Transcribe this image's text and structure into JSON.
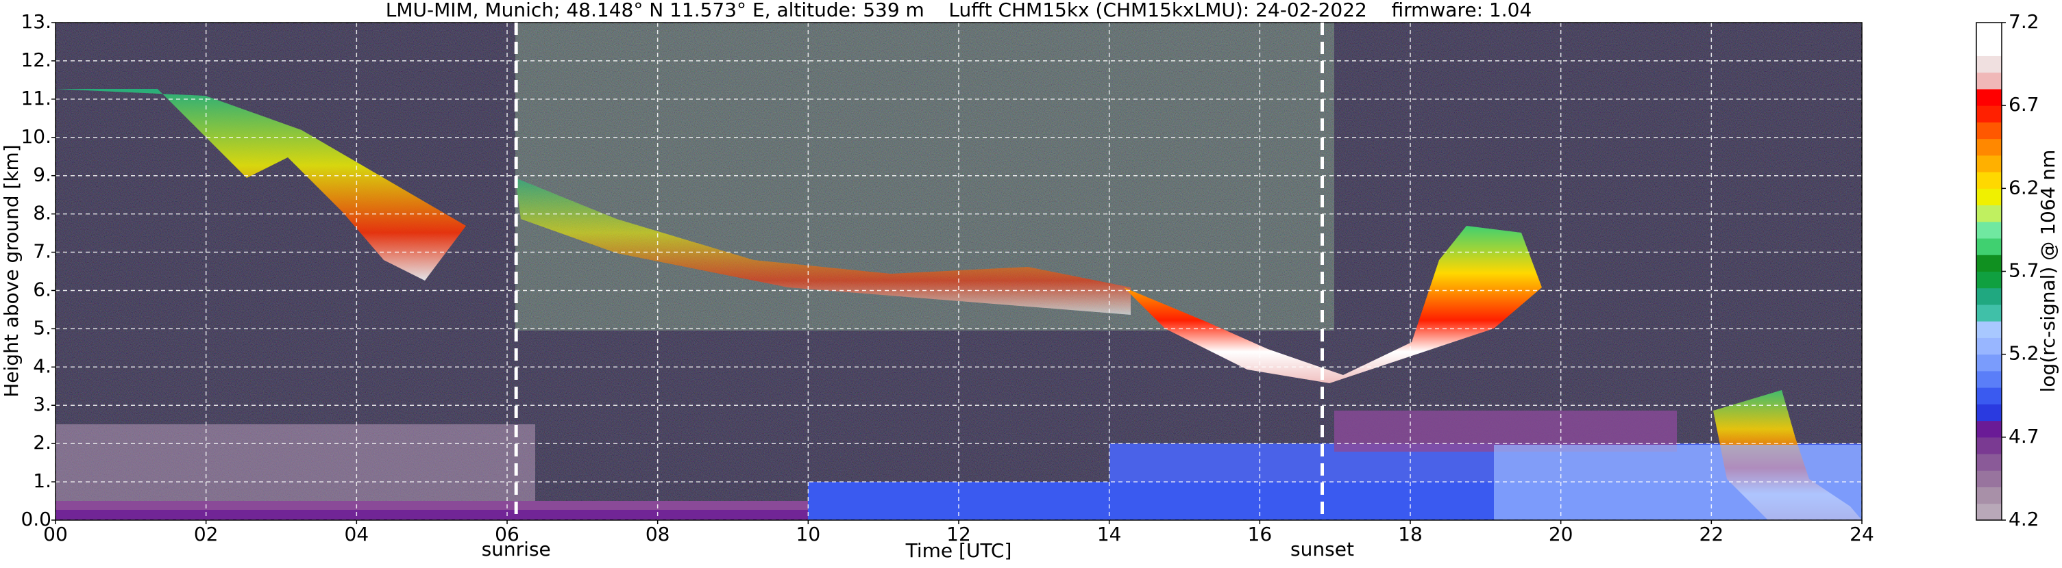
{
  "chart_data": {
    "type": "heatmap",
    "title": "LMU-MIM, Munich; 48.148° N 11.573° E, altitude: 539 m    Lufft CHM15kx (CHM15kxLMU): 24-02-2022    firmware: 1.04",
    "x_label": "Time [UTC]",
    "y_label": "Height above ground [km]",
    "xlim": [
      0,
      24
    ],
    "xticks": [
      {
        "value": 0,
        "label": "00"
      },
      {
        "value": 2,
        "label": "02"
      },
      {
        "value": 4,
        "label": "04"
      },
      {
        "value": 6,
        "label": "06"
      },
      {
        "value": 8,
        "label": "08"
      },
      10,
      12,
      14,
      16,
      18,
      20,
      22,
      24
    ],
    "ylim": [
      0,
      13
    ],
    "yticks": [
      {
        "value": 0,
        "label": "0.0"
      },
      {
        "value": 1,
        "label": "1."
      },
      {
        "value": 2,
        "label": "2."
      },
      {
        "value": 3,
        "label": "3."
      },
      {
        "value": 4,
        "label": "4."
      },
      {
        "value": 5,
        "label": "5."
      },
      {
        "value": 6,
        "label": "6."
      },
      {
        "value": 7,
        "label": "7."
      },
      {
        "value": 8,
        "label": "8."
      },
      {
        "value": 9,
        "label": "9."
      },
      {
        "value": 10,
        "label": "10."
      },
      {
        "value": 11,
        "label": "11."
      },
      {
        "value": 12,
        "label": "12."
      },
      {
        "value": 13,
        "label": "13."
      }
    ],
    "grid": true,
    "annotations": [
      {
        "x": 6.12,
        "label": "sunrise"
      },
      {
        "x": 16.83,
        "label": "sunset"
      }
    ],
    "colorbar": {
      "label": "log(rc-signal) @ 1064 nm",
      "lim": [
        4.2,
        7.2
      ],
      "ticks": [
        4.2,
        4.7,
        5.2,
        5.7,
        6.2,
        6.7,
        7.2
      ],
      "colors": [
        "#b8a8b8",
        "#a890a8",
        "#98749e",
        "#8a5a98",
        "#7a3a92",
        "#6a1b96",
        "#2a3ae0",
        "#3a5af0",
        "#5a7ef8",
        "#7a9cfc",
        "#98b6ff",
        "#a8c8ff",
        "#40c0a8",
        "#20a880",
        "#10a040",
        "#109020",
        "#40d070",
        "#70e8a0",
        "#c0f060",
        "#f0f000",
        "#ffd800",
        "#ffb000",
        "#ff8800",
        "#ff5800",
        "#ff2000",
        "#ff0000",
        "#f0b8b8",
        "#f0e0e0",
        "#ffffff",
        "#ffffff"
      ]
    }
  }
}
